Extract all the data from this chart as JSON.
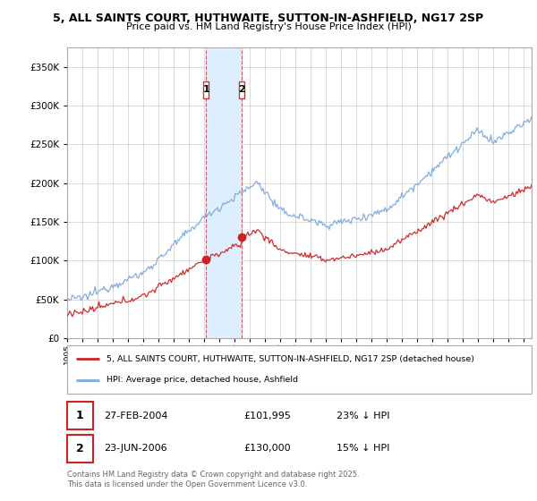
{
  "title1": "5, ALL SAINTS COURT, HUTHWAITE, SUTTON-IN-ASHFIELD, NG17 2SP",
  "title2": "Price paid vs. HM Land Registry's House Price Index (HPI)",
  "legend_line1": "5, ALL SAINTS COURT, HUTHWAITE, SUTTON-IN-ASHFIELD, NG17 2SP (detached house)",
  "legend_line2": "HPI: Average price, detached house, Ashfield",
  "transaction1_date": "27-FEB-2004",
  "transaction1_price": "£101,995",
  "transaction1_hpi": "23% ↓ HPI",
  "transaction1_year": 2004.125,
  "transaction1_value": 101995,
  "transaction2_date": "23-JUN-2006",
  "transaction2_price": "£130,000",
  "transaction2_hpi": "15% ↓ HPI",
  "transaction2_year": 2006.458,
  "transaction2_value": 130000,
  "footer": "Contains HM Land Registry data © Crown copyright and database right 2025.\nThis data is licensed under the Open Government Licence v3.0.",
  "hpi_color": "#7aaadd",
  "price_color": "#cc2222",
  "highlight_color": "#ddeeff",
  "vline_color": "#cc3333",
  "ylim_max": 375000,
  "start_year": 1995.0,
  "end_year": 2025.5,
  "background_color": "#ffffff",
  "grid_color": "#cccccc"
}
